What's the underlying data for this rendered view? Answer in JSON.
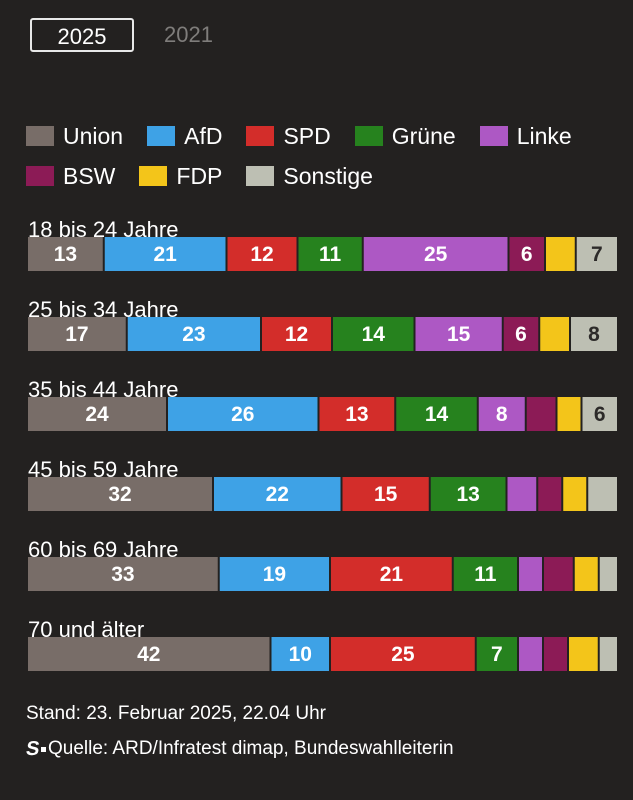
{
  "tabs": [
    {
      "label": "2025",
      "active": true
    },
    {
      "label": "2021",
      "active": false
    }
  ],
  "legend": [
    {
      "name": "Union",
      "color": "#786d68"
    },
    {
      "name": "AfD",
      "color": "#3ea2e6"
    },
    {
      "name": "SPD",
      "color": "#d32d2a"
    },
    {
      "name": "Grüne",
      "color": "#26821e"
    },
    {
      "name": "Linke",
      "color": "#ad58c4"
    },
    {
      "name": "BSW",
      "color": "#8c1b56"
    },
    {
      "name": "FDP",
      "color": "#f3c51a"
    },
    {
      "name": "Sonstige",
      "color": "#bdbfb3"
    }
  ],
  "chart_data": {
    "type": "bar",
    "stacked": true,
    "orientation": "horizontal",
    "unit": "%",
    "categories": [
      "18 bis 24 Jahre",
      "25 bis 34 Jahre",
      "35 bis 44 Jahre",
      "45 bis 59 Jahre",
      "60 bis 69 Jahre",
      "70 und älter"
    ],
    "series": [
      {
        "name": "Union",
        "color": "#786d68",
        "values": [
          13,
          17,
          24,
          32,
          33,
          42
        ]
      },
      {
        "name": "AfD",
        "color": "#3ea2e6",
        "values": [
          21,
          23,
          26,
          22,
          19,
          10
        ]
      },
      {
        "name": "SPD",
        "color": "#d32d2a",
        "values": [
          12,
          12,
          13,
          15,
          21,
          25
        ]
      },
      {
        "name": "Grüne",
        "color": "#26821e",
        "values": [
          11,
          14,
          14,
          13,
          11,
          7
        ]
      },
      {
        "name": "Linke",
        "color": "#ad58c4",
        "values": [
          25,
          15,
          8,
          5,
          4,
          4
        ]
      },
      {
        "name": "BSW",
        "color": "#8c1b56",
        "values": [
          6,
          6,
          5,
          4,
          5,
          4
        ]
      },
      {
        "name": "FDP",
        "color": "#f3c51a",
        "values": [
          5,
          5,
          4,
          4,
          4,
          5
        ]
      },
      {
        "name": "Sonstige",
        "color": "#bdbfb3",
        "values": [
          7,
          8,
          6,
          5,
          3,
          3
        ]
      }
    ],
    "labeled": [
      [
        true,
        true,
        true,
        true,
        true,
        true,
        false,
        true
      ],
      [
        true,
        true,
        true,
        true,
        true,
        true,
        false,
        true
      ],
      [
        true,
        true,
        true,
        true,
        true,
        false,
        false,
        true
      ],
      [
        true,
        true,
        true,
        true,
        false,
        false,
        false,
        false
      ],
      [
        true,
        true,
        true,
        true,
        false,
        false,
        false,
        false
      ],
      [
        true,
        true,
        true,
        true,
        false,
        false,
        false,
        false
      ]
    ]
  },
  "footer": {
    "stand": "Stand: 23. Februar 2025, 22.04 Uhr",
    "logo": "S",
    "source": "Quelle: ARD/Infratest dimap, Bundeswahlleiterin"
  }
}
